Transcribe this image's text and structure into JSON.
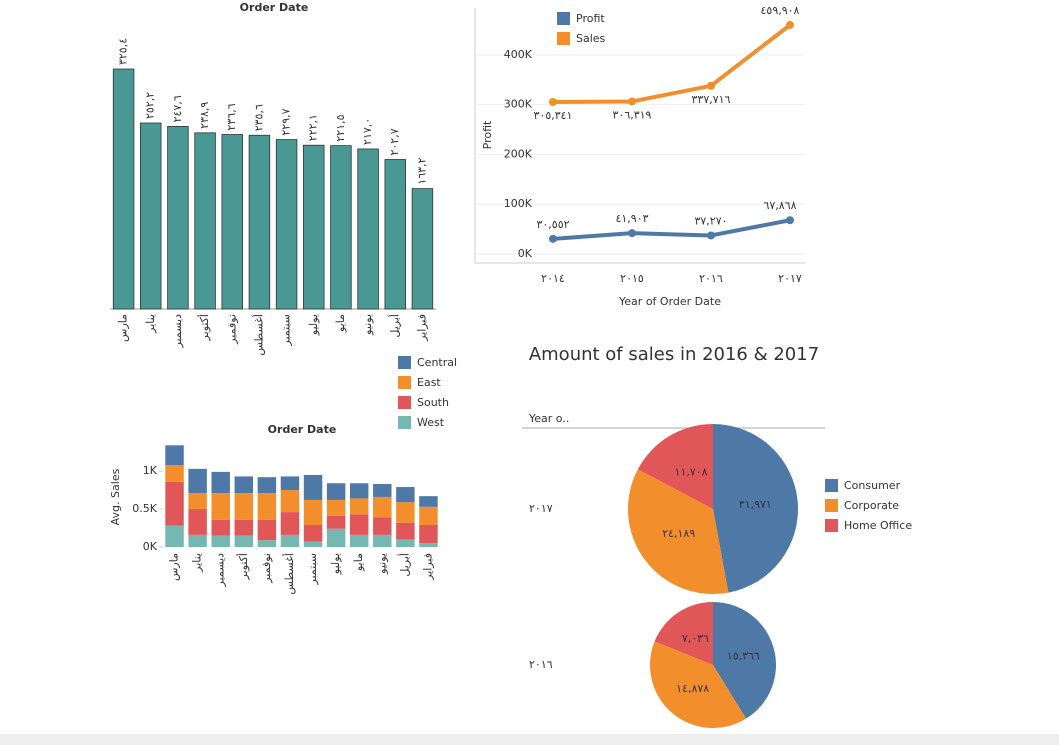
{
  "chart_data": [
    {
      "type": "bar",
      "title": "Order Date",
      "color": "#499894",
      "categories": [
        "مارس",
        "يناير",
        "ديسمبر",
        "أكتوبر",
        "نوفمبر",
        "أغسطس",
        "سبتمبر",
        "يوليو",
        "مايو",
        "يونيو",
        "أبريل",
        "فبراير"
      ],
      "values": [
        325.4,
        252.2,
        247.6,
        238.9,
        236.6,
        235.6,
        229.7,
        222.1,
        221.5,
        217.0,
        202.7,
        163.2
      ],
      "value_labels": [
        "٣٢٥,٤",
        "٢٥٢,٢",
        "٢٤٧,٦",
        "٢٣٨,٩",
        "٢٣٦,٦",
        "٢٣٥,٦",
        "٢٢٩,٧",
        "٢٢٢,١",
        "٢٢١,٥",
        "٢١٧,٠",
        "٢٠٢,٧",
        "١٦٣,٢"
      ]
    },
    {
      "type": "line",
      "x_label": "Year of Order Date",
      "y_label": "Profit",
      "categories": [
        "٢٠١٤",
        "٢٠١٥",
        "٢٠١٦",
        "٢٠١٧"
      ],
      "series": [
        {
          "name": "Profit",
          "color": "#4e79a7",
          "values": [
            30552,
            41903,
            37270,
            67868
          ],
          "value_labels": [
            "٣٠,٥٥٢",
            "٤١,٩٠٣",
            "٣٧,٢٧٠",
            "٦٧,٨٦٨"
          ]
        },
        {
          "name": "Sales",
          "color": "#f28e2b",
          "values": [
            305341,
            306319,
            337716,
            459908
          ],
          "value_labels": [
            "٣٠٥,٣٤١",
            "٣٠٦,٣١٩",
            "٣٣٧,٧١٦",
            "٤٥٩,٩٠٨"
          ]
        }
      ],
      "ylim": [
        -18000,
        494000
      ],
      "yticks": [
        {
          "value": 0,
          "label": "0K"
        },
        {
          "value": 100000,
          "label": "100K"
        },
        {
          "value": 200000,
          "label": "200K"
        },
        {
          "value": 300000,
          "label": "300K"
        },
        {
          "value": 400000,
          "label": "400K"
        }
      ],
      "grid": true
    },
    {
      "type": "stacked_bar",
      "title": "Order Date",
      "y_label": "Avg. Sales",
      "categories": [
        "مارس",
        "يناير",
        "ديسمبر",
        "أكتوبر",
        "نوفمبر",
        "أغسطس",
        "سبتمبر",
        "يوليو",
        "مايو",
        "يونيو",
        "أبريل",
        "فبراير"
      ],
      "series": [
        {
          "name": "Central",
          "color": "#4e79a7",
          "values": [
            260,
            320,
            280,
            220,
            210,
            180,
            330,
            220,
            200,
            170,
            200,
            140
          ]
        },
        {
          "name": "East",
          "color": "#f28e2b",
          "values": [
            220,
            210,
            350,
            350,
            350,
            290,
            330,
            210,
            210,
            270,
            270,
            240
          ]
        },
        {
          "name": "South",
          "color": "#e15759",
          "values": [
            580,
            340,
            210,
            210,
            270,
            300,
            220,
            170,
            270,
            230,
            220,
            240
          ]
        },
        {
          "name": "West",
          "color": "#76b7b2",
          "values": [
            280,
            160,
            150,
            150,
            90,
            160,
            70,
            240,
            160,
            160,
            100,
            50
          ]
        }
      ],
      "ylim": [
        0,
        1410
      ],
      "yticks": [
        {
          "value": 0,
          "label": "0K"
        },
        {
          "value": 500,
          "label": "0.5K"
        },
        {
          "value": 1000,
          "label": "1K"
        }
      ]
    },
    {
      "type": "pie",
      "title": "Amount of sales in 2016 & 2017",
      "column_header": "Year o..",
      "categories": [
        "Consumer",
        "Corporate",
        "Home Office"
      ],
      "colors": [
        "#4e79a7",
        "#f28e2b",
        "#e15759"
      ],
      "pies": [
        {
          "label": "٢٠١٧",
          "values": [
            31971,
            24189,
            11708
          ],
          "value_labels": [
            "٣١,٩٧١",
            "٢٤,١٨٩",
            "١١,٧٠٨"
          ]
        },
        {
          "label": "٢٠١٦",
          "values": [
            15366,
            14878,
            7036
          ],
          "value_labels": [
            "١٥,٣٦٦",
            "١٤,٨٧٨",
            "٧,٠٣٦"
          ]
        }
      ]
    }
  ]
}
